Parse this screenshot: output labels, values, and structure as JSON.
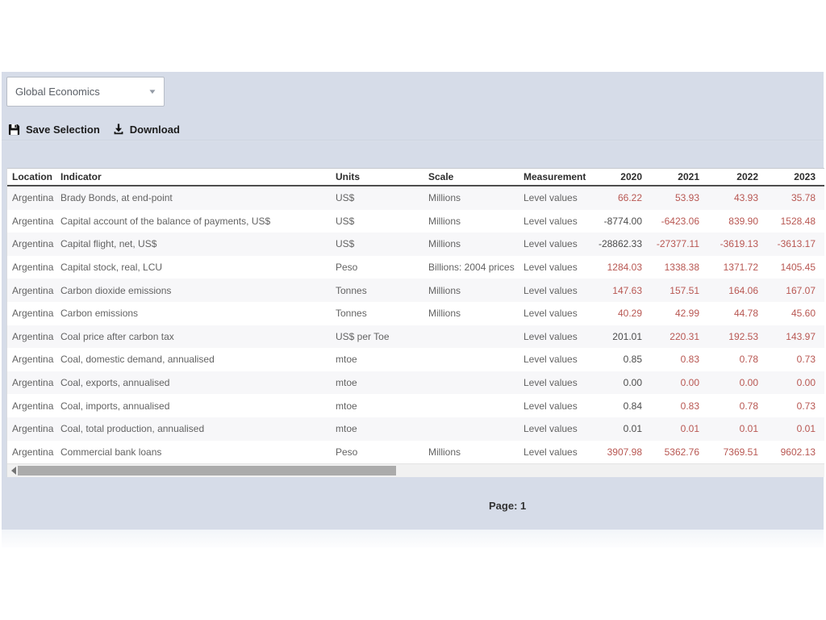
{
  "toolbar": {
    "dropdown_value": "Global Economics",
    "save_label": "Save Selection",
    "download_label": "Download"
  },
  "table": {
    "columns": [
      "Location",
      "Indicator",
      "Units",
      "Scale",
      "Measurement",
      "2020",
      "2021",
      "2022",
      "2023"
    ],
    "rows": [
      {
        "location": "Argentina",
        "indicator": "Brady Bonds, at end-point",
        "units": "US$",
        "scale": "Millions",
        "measurement": "Level values",
        "values": [
          {
            "text": "66.22",
            "type": "forecast"
          },
          {
            "text": "53.93",
            "type": "forecast"
          },
          {
            "text": "43.93",
            "type": "forecast"
          },
          {
            "text": "35.78",
            "type": "forecast"
          }
        ]
      },
      {
        "location": "Argentina",
        "indicator": "Capital account of the balance of payments, US$",
        "units": "US$",
        "scale": "Millions",
        "measurement": "Level values",
        "values": [
          {
            "text": "-8774.00",
            "type": "actual"
          },
          {
            "text": "-6423.06",
            "type": "forecast"
          },
          {
            "text": "839.90",
            "type": "forecast"
          },
          {
            "text": "1528.48",
            "type": "forecast"
          }
        ]
      },
      {
        "location": "Argentina",
        "indicator": "Capital flight, net, US$",
        "units": "US$",
        "scale": "Millions",
        "measurement": "Level values",
        "values": [
          {
            "text": "-28862.33",
            "type": "actual"
          },
          {
            "text": "-27377.11",
            "type": "forecast"
          },
          {
            "text": "-3619.13",
            "type": "forecast"
          },
          {
            "text": "-3613.17",
            "type": "forecast"
          }
        ]
      },
      {
        "location": "Argentina",
        "indicator": "Capital stock, real, LCU",
        "units": "Peso",
        "scale": "Billions: 2004 prices",
        "measurement": "Level values",
        "values": [
          {
            "text": "1284.03",
            "type": "forecast"
          },
          {
            "text": "1338.38",
            "type": "forecast"
          },
          {
            "text": "1371.72",
            "type": "forecast"
          },
          {
            "text": "1405.45",
            "type": "forecast"
          }
        ]
      },
      {
        "location": "Argentina",
        "indicator": "Carbon dioxide emissions",
        "units": "Tonnes",
        "scale": "Millions",
        "measurement": "Level values",
        "values": [
          {
            "text": "147.63",
            "type": "forecast"
          },
          {
            "text": "157.51",
            "type": "forecast"
          },
          {
            "text": "164.06",
            "type": "forecast"
          },
          {
            "text": "167.07",
            "type": "forecast"
          }
        ]
      },
      {
        "location": "Argentina",
        "indicator": "Carbon emissions",
        "units": "Tonnes",
        "scale": "Millions",
        "measurement": "Level values",
        "values": [
          {
            "text": "40.29",
            "type": "forecast"
          },
          {
            "text": "42.99",
            "type": "forecast"
          },
          {
            "text": "44.78",
            "type": "forecast"
          },
          {
            "text": "45.60",
            "type": "forecast"
          }
        ]
      },
      {
        "location": "Argentina",
        "indicator": "Coal price after carbon tax",
        "units": "US$ per Toe",
        "scale": "",
        "measurement": "Level values",
        "values": [
          {
            "text": "201.01",
            "type": "actual"
          },
          {
            "text": "220.31",
            "type": "forecast"
          },
          {
            "text": "192.53",
            "type": "forecast"
          },
          {
            "text": "143.97",
            "type": "forecast"
          }
        ]
      },
      {
        "location": "Argentina",
        "indicator": "Coal, domestic demand, annualised",
        "units": "mtoe",
        "scale": "",
        "measurement": "Level values",
        "values": [
          {
            "text": "0.85",
            "type": "actual"
          },
          {
            "text": "0.83",
            "type": "forecast"
          },
          {
            "text": "0.78",
            "type": "forecast"
          },
          {
            "text": "0.73",
            "type": "forecast"
          }
        ]
      },
      {
        "location": "Argentina",
        "indicator": "Coal, exports, annualised",
        "units": "mtoe",
        "scale": "",
        "measurement": "Level values",
        "values": [
          {
            "text": "0.00",
            "type": "actual"
          },
          {
            "text": "0.00",
            "type": "forecast"
          },
          {
            "text": "0.00",
            "type": "forecast"
          },
          {
            "text": "0.00",
            "type": "forecast"
          }
        ]
      },
      {
        "location": "Argentina",
        "indicator": "Coal, imports, annualised",
        "units": "mtoe",
        "scale": "",
        "measurement": "Level values",
        "values": [
          {
            "text": "0.84",
            "type": "actual"
          },
          {
            "text": "0.83",
            "type": "forecast"
          },
          {
            "text": "0.78",
            "type": "forecast"
          },
          {
            "text": "0.73",
            "type": "forecast"
          }
        ]
      },
      {
        "location": "Argentina",
        "indicator": "Coal, total production, annualised",
        "units": "mtoe",
        "scale": "",
        "measurement": "Level values",
        "values": [
          {
            "text": "0.01",
            "type": "actual"
          },
          {
            "text": "0.01",
            "type": "forecast"
          },
          {
            "text": "0.01",
            "type": "forecast"
          },
          {
            "text": "0.01",
            "type": "forecast"
          }
        ]
      },
      {
        "location": "Argentina",
        "indicator": "Commercial bank loans",
        "units": "Peso",
        "scale": "Millions",
        "measurement": "Level values",
        "values": [
          {
            "text": "3907.98",
            "type": "forecast"
          },
          {
            "text": "5362.76",
            "type": "forecast"
          },
          {
            "text": "7369.51",
            "type": "forecast"
          },
          {
            "text": "9602.13",
            "type": "forecast"
          }
        ]
      }
    ]
  },
  "pagination": {
    "label": "Page: 1"
  },
  "colors": {
    "panel_background": "#d6dce8",
    "forecast_value": "#b85752",
    "actual_value": "#4c4c4c"
  }
}
